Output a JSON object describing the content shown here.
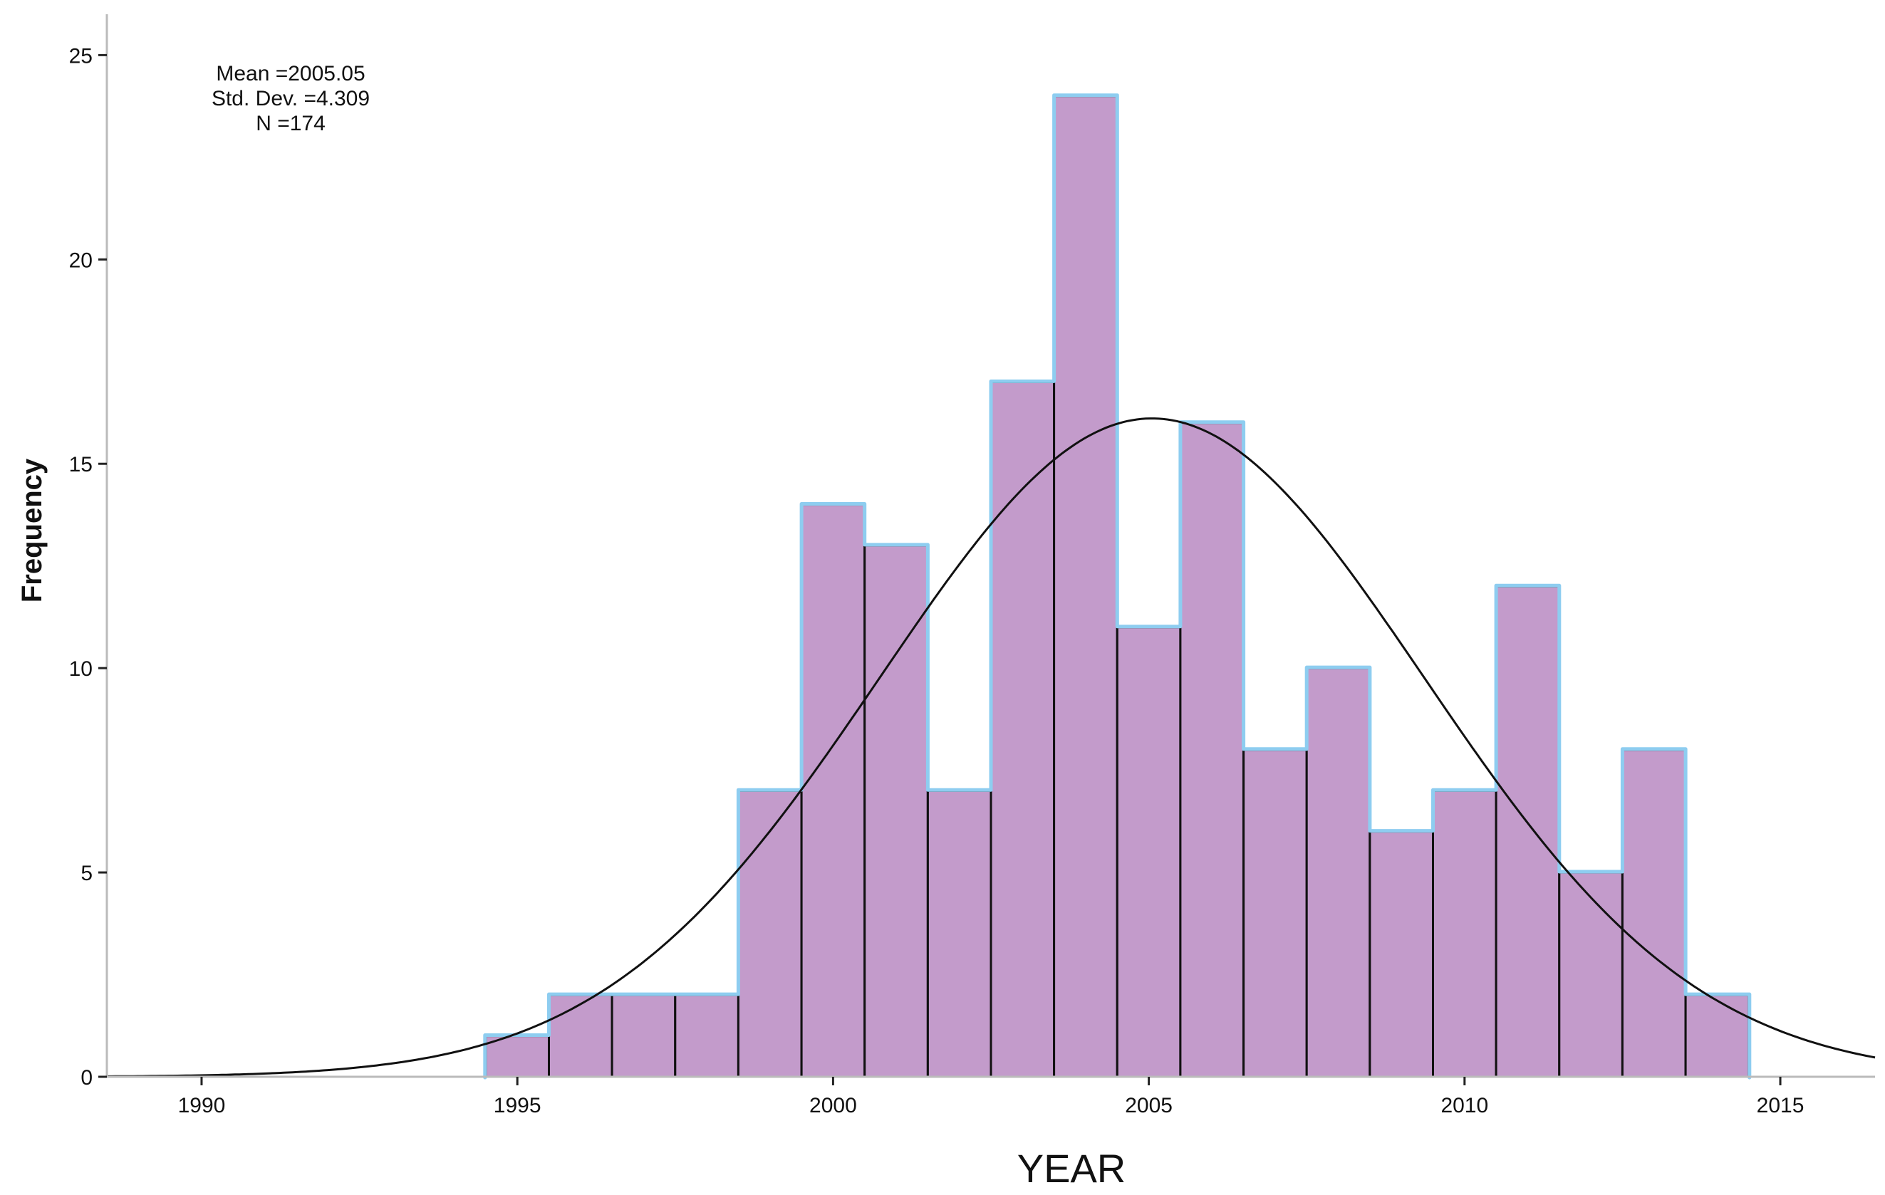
{
  "chart_data": {
    "type": "bar",
    "title": "",
    "xlabel": "YEAR",
    "ylabel": "Frequency",
    "x_axis": {
      "range": [
        1988.5,
        2016.5
      ],
      "ticks": [
        1990,
        1995,
        2000,
        2005,
        2010,
        2015
      ],
      "tick_labels": [
        "1990",
        "1995",
        "2000",
        "2005",
        "2010",
        "2015"
      ]
    },
    "y_axis": {
      "range": [
        0,
        26
      ],
      "ticks": [
        0,
        5,
        10,
        15,
        20,
        25
      ],
      "tick_labels": [
        "0",
        "5",
        "10",
        "15",
        "20",
        "25"
      ]
    },
    "bin_width": 1,
    "bins": [
      {
        "year": 1995,
        "count": 1
      },
      {
        "year": 1996,
        "count": 2
      },
      {
        "year": 1997,
        "count": 2
      },
      {
        "year": 1998,
        "count": 2
      },
      {
        "year": 1999,
        "count": 7
      },
      {
        "year": 2000,
        "count": 14
      },
      {
        "year": 2001,
        "count": 13
      },
      {
        "year": 2002,
        "count": 7
      },
      {
        "year": 2003,
        "count": 17
      },
      {
        "year": 2004,
        "count": 24
      },
      {
        "year": 2005,
        "count": 11
      },
      {
        "year": 2006,
        "count": 16
      },
      {
        "year": 2007,
        "count": 8
      },
      {
        "year": 2008,
        "count": 10
      },
      {
        "year": 2009,
        "count": 6
      },
      {
        "year": 2010,
        "count": 7
      },
      {
        "year": 2011,
        "count": 12
      },
      {
        "year": 2012,
        "count": 5
      },
      {
        "year": 2013,
        "count": 8
      },
      {
        "year": 2014,
        "count": 2
      }
    ],
    "normal_curve": {
      "mean": 2005.05,
      "std_dev": 4.309,
      "n": 174
    },
    "stats_text": [
      "Mean =2005.05",
      "Std. Dev. =4.309",
      "N =174"
    ],
    "grid": false,
    "colors": {
      "bar_fill": "#c39bcb",
      "bar_stroke": "#111111",
      "outline_highlight": "#8ecdf0",
      "curve": "#111111",
      "axis": "#bbbbbb"
    }
  }
}
